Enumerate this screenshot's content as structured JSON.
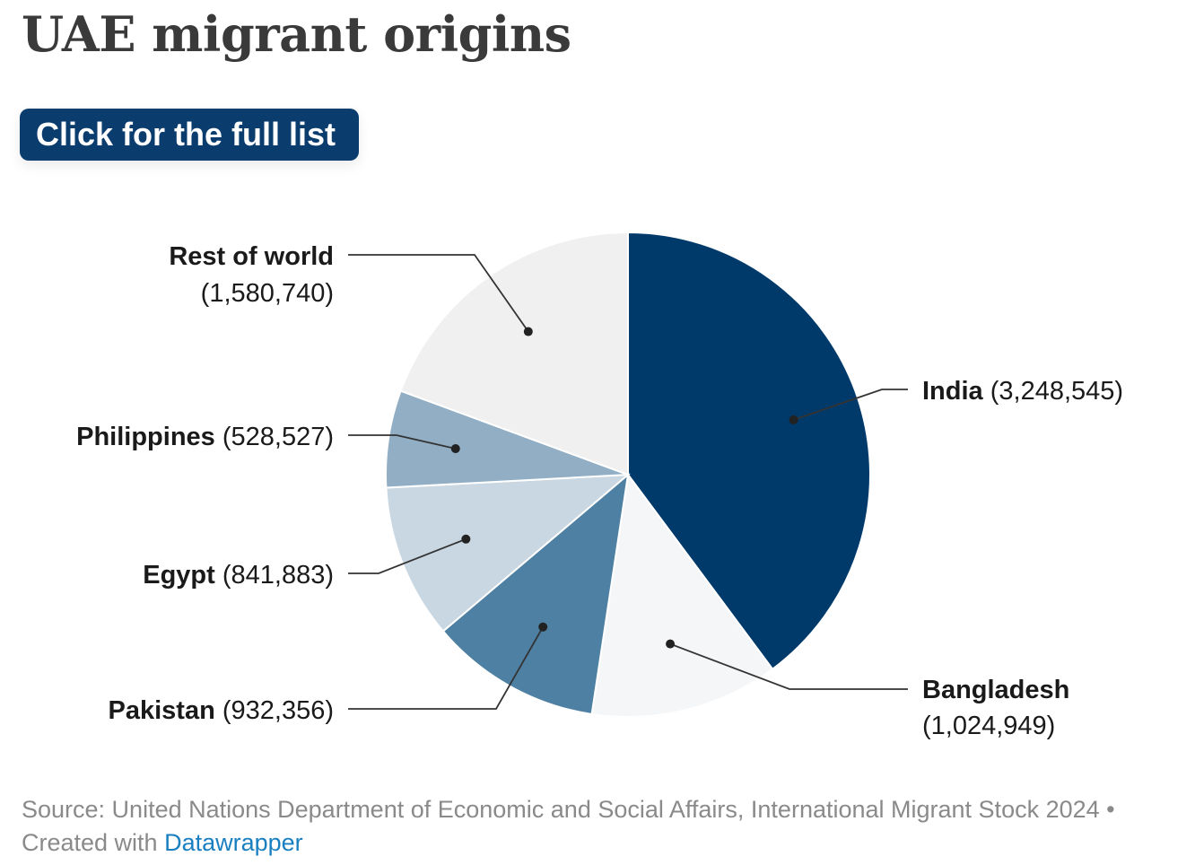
{
  "header": {
    "title": "UAE migrant origins",
    "button_label": "Click for the full list"
  },
  "chart_data": {
    "type": "pie",
    "title": "UAE migrant origins",
    "slices": [
      {
        "label": "India",
        "value": 3248545,
        "value_text": "(3,248,545)",
        "color": "#003a6b"
      },
      {
        "label": "Bangladesh",
        "value": 1024949,
        "value_text": "(1,024,949)",
        "color": "#f4f6f8"
      },
      {
        "label": "Pakistan",
        "value": 932356,
        "value_text": "(932,356)",
        "color": "#4e80a3"
      },
      {
        "label": "Egypt",
        "value": 841883,
        "value_text": "(841,883)",
        "color": "#c9d7e2"
      },
      {
        "label": "Philippines",
        "value": 528527,
        "value_text": "(528,527)",
        "color": "#91aec4"
      },
      {
        "label": "Rest of world",
        "value": 1580740,
        "value_text": "(1,580,740)",
        "color": "#f0f0f0"
      }
    ]
  },
  "footer": {
    "source_text": "Source: United Nations Department of Economic and Social Affairs, International Migrant Stock 2024 • Created with ",
    "link_text": "Datawrapper"
  }
}
